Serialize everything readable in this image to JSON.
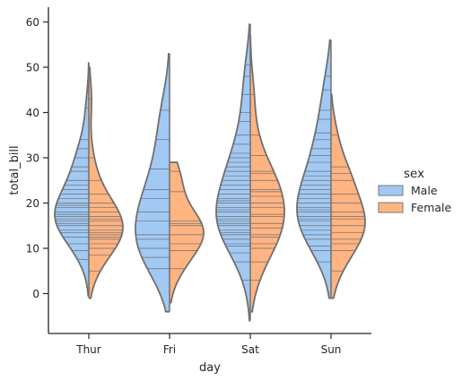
{
  "chart_data": {
    "type": "violin",
    "xlabel": "day",
    "ylabel": "total_bill",
    "categories": [
      "Thur",
      "Fri",
      "Sat",
      "Sun"
    ],
    "ylim": [
      -9,
      63
    ],
    "yticks": [
      0,
      10,
      20,
      30,
      40,
      50,
      60
    ],
    "split": true,
    "inner": "stick",
    "grid": false,
    "legend": {
      "title": "sex",
      "placement": "right",
      "entries": [
        {
          "name": "Male",
          "color": "#a1c9f4"
        },
        {
          "name": "Female",
          "color": "#ffb482"
        }
      ]
    },
    "series": [
      {
        "name": "Male",
        "color": "#a1c9f4",
        "distributions": [
          {
            "category": "Thur",
            "range": [
              -0.5,
              51
            ],
            "peak": 17,
            "values": [
              7.5,
              9.5,
              11,
              12.5,
              13.5,
              14,
              15,
              15.5,
              16,
              16.5,
              17,
              17.5,
              18,
              19,
              19.5,
              20,
              21,
              22,
              23,
              24,
              25,
              27,
              28,
              30,
              32,
              34,
              41
            ]
          },
          {
            "category": "Fri",
            "range": [
              -4,
              53
            ],
            "peak": 12,
            "values": [
              5.5,
              8,
              10,
              12,
              13,
              16,
              18,
              21,
              23,
              27.5,
              34,
              40.5
            ]
          },
          {
            "category": "Sat",
            "range": [
              -6,
              59.5
            ],
            "peak": 17,
            "values": [
              3,
              7,
              9,
              10.5,
              11,
              12,
              13,
              13.5,
              14,
              15,
              15.5,
              16,
              16.5,
              17,
              18,
              18.5,
              19,
              20,
              20.5,
              21,
              22,
              23,
              24,
              25,
              26,
              27,
              28,
              29,
              30,
              31,
              33,
              35,
              38,
              40,
              44,
              48,
              50.5
            ]
          },
          {
            "category": "Sun",
            "range": [
              -1,
              56
            ],
            "peak": 17,
            "values": [
              7,
              9.5,
              10.5,
              12,
              13,
              14,
              15,
              16,
              16.5,
              17,
              18,
              18.5,
              19,
              20,
              21,
              22,
              23,
              24,
              25,
              26,
              27,
              29,
              30.5,
              32,
              34,
              35.5,
              38.5,
              40.5,
              45,
              48
            ]
          }
        ]
      },
      {
        "name": "Female",
        "color": "#ffb482",
        "distributions": [
          {
            "category": "Thur",
            "range": [
              -1,
              50
            ],
            "peak": 13,
            "values": [
              5,
              8.5,
              10,
              11,
              12,
              12.5,
              13,
              13.5,
              14,
              15,
              16,
              16.5,
              17,
              18,
              19,
              20,
              22,
              25,
              30,
              43
            ]
          },
          {
            "category": "Fri",
            "range": [
              -2,
              29
            ],
            "peak": 15,
            "values": [
              5.5,
              9.5,
              11,
              13,
              15,
              15.5,
              16,
              22.5,
              27
            ]
          },
          {
            "category": "Sat",
            "range": [
              -4,
              57
            ],
            "peak": 17,
            "values": [
              3,
              7,
              10,
              11,
              12.5,
              13,
              14.5,
              15.5,
              17,
              17.5,
              19,
              20,
              21.5,
              22.5,
              23,
              25,
              26.5,
              27,
              30.5,
              35,
              44
            ]
          },
          {
            "category": "Sun",
            "range": [
              -1,
              44
            ],
            "peak": 17,
            "values": [
              5,
              9.5,
              11,
              12,
              13.5,
              15,
              16.5,
              17,
              18,
              20,
              22,
              25,
              26.5,
              28,
              35
            ]
          }
        ]
      }
    ]
  }
}
